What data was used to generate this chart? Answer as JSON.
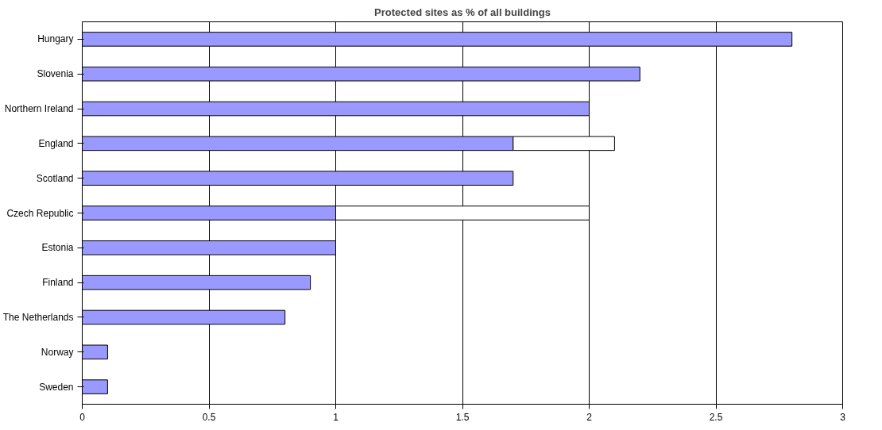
{
  "chart_data": {
    "type": "bar",
    "orientation": "horizontal",
    "stacked": true,
    "title": "Protected sites as % of all buildings",
    "categories": [
      "Hungary",
      "Slovenia",
      "Northern Ireland",
      "England",
      "Scotland",
      "Czech Republic",
      "Estonia",
      "Finland",
      "The Netherlands",
      "Norway",
      "Sweden"
    ],
    "series": [
      {
        "color": "#9999ff",
        "values": [
          2.8,
          2.2,
          2.0,
          1.7,
          1.7,
          1.0,
          1.0,
          0.9,
          0.8,
          0.1,
          0.1
        ]
      },
      {
        "color": "#ffffff",
        "values": [
          null,
          null,
          null,
          0.4,
          null,
          1.0,
          null,
          null,
          null,
          null,
          null
        ]
      }
    ],
    "xlim": [
      0,
      3
    ],
    "xticks": [
      0,
      0.5,
      1,
      1.5,
      2,
      2.5,
      3
    ],
    "grid": "x"
  }
}
